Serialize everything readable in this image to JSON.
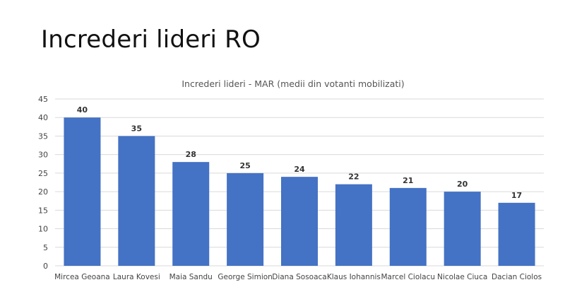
{
  "slide": {
    "title": "Increderi lideri RO"
  },
  "chart_data": {
    "type": "bar",
    "title": "Increderi lideri - MAR (medii din votanti mobilizati)",
    "xlabel": "",
    "ylabel": "",
    "categories": [
      "Mircea Geoana",
      "Laura Kovesi",
      "Maia Sandu",
      "George Simion",
      "Diana Sosoaca",
      "Klaus Iohannis",
      "Marcel Ciolacu",
      "Nicolae Ciuca",
      "Dacian Ciolos"
    ],
    "values": [
      40,
      35,
      28,
      25,
      24,
      22,
      21,
      20,
      17
    ],
    "ylim": [
      0,
      45
    ],
    "yticks": [
      0,
      5,
      10,
      15,
      20,
      25,
      30,
      35,
      40,
      45
    ],
    "grid": true,
    "legend": "none",
    "data_labels": true,
    "bar_color": "#4472c4"
  }
}
